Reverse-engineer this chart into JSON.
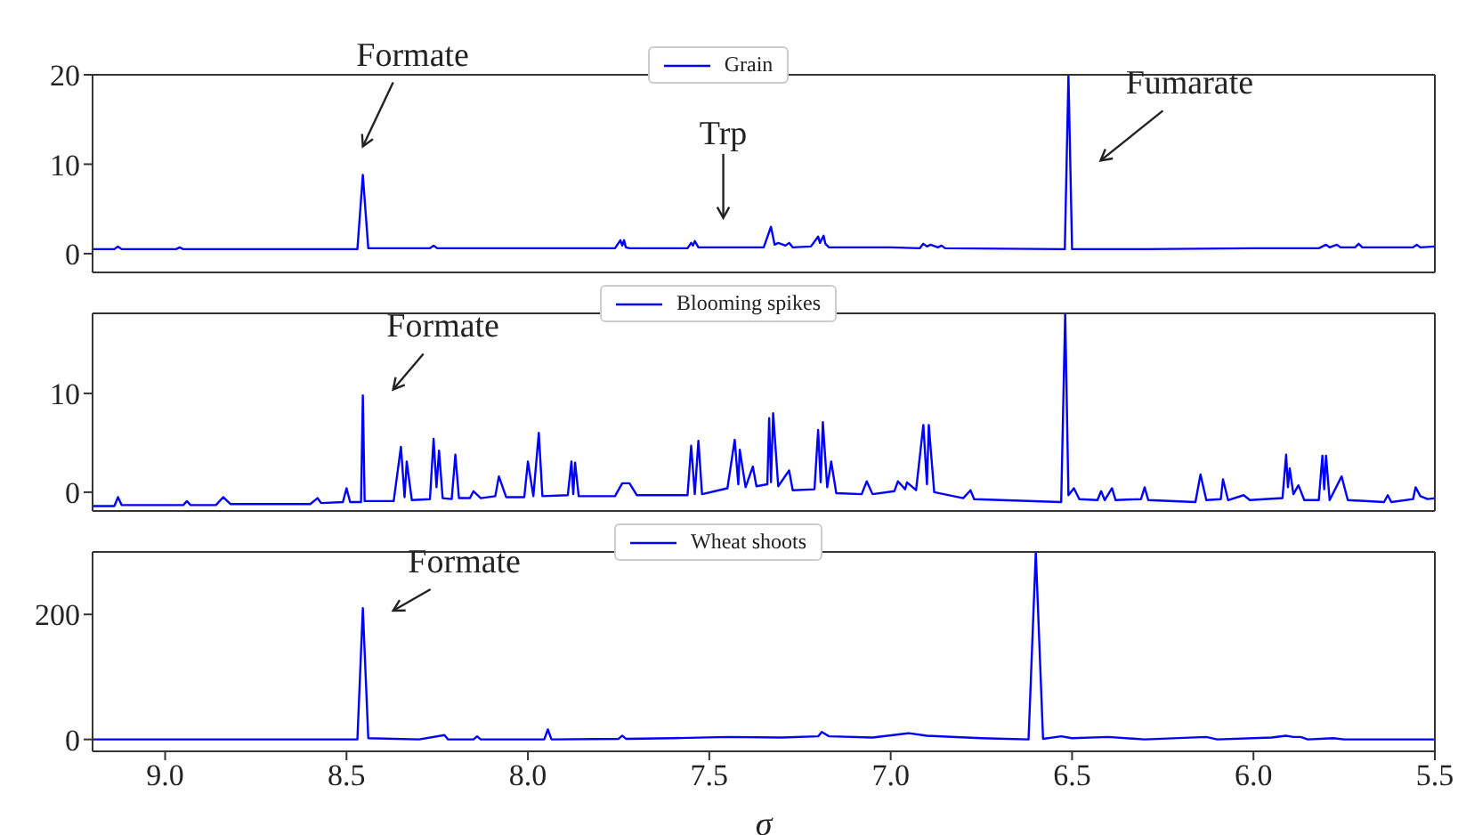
{
  "chart_data": [
    {
      "type": "line",
      "xlim": [
        9.2,
        5.5
      ],
      "ylim": [
        -2.1,
        20
      ],
      "yticks": [
        0,
        10,
        20
      ],
      "tick_labels": "y",
      "grid": false,
      "legend": "top",
      "marker": "none",
      "line_style": "solid",
      "x": [
        9.2,
        9.14,
        9.13,
        9.12,
        8.97,
        8.96,
        8.95,
        8.7,
        8.47,
        8.455,
        8.44,
        8.3,
        8.27,
        8.26,
        8.25,
        7.9,
        7.76,
        7.745,
        7.74,
        7.735,
        7.73,
        7.72,
        7.56,
        7.55,
        7.545,
        7.54,
        7.53,
        7.35,
        7.33,
        7.32,
        7.31,
        7.29,
        7.28,
        7.27,
        7.22,
        7.2,
        7.195,
        7.185,
        7.18,
        7.17,
        7.0,
        6.92,
        6.91,
        6.9,
        6.89,
        6.87,
        6.86,
        6.85,
        6.53,
        6.52,
        6.51,
        6.5,
        6.3,
        6.0,
        5.82,
        5.8,
        5.79,
        5.77,
        5.76,
        5.72,
        5.71,
        5.7,
        5.6,
        5.56,
        5.55,
        5.54,
        5.5
      ],
      "series": [
        {
          "name": "Grain",
          "color": "#0000ff",
          "values": [
            0.5,
            0.5,
            0.8,
            0.5,
            0.5,
            0.7,
            0.5,
            0.5,
            0.5,
            8.8,
            0.6,
            0.6,
            0.6,
            0.9,
            0.6,
            0.6,
            0.6,
            1.5,
            0.9,
            1.5,
            0.7,
            0.6,
            0.6,
            1.2,
            0.9,
            1.4,
            0.7,
            0.7,
            3.0,
            1.0,
            1.2,
            0.9,
            1.2,
            0.7,
            0.8,
            1.9,
            1.2,
            2.0,
            1.1,
            0.7,
            0.7,
            0.6,
            1.1,
            0.8,
            1.0,
            0.7,
            0.9,
            0.6,
            0.5,
            0.5,
            20,
            0.5,
            0.5,
            0.6,
            0.6,
            1.0,
            0.7,
            1.0,
            0.7,
            0.7,
            1.1,
            0.7,
            0.7,
            0.7,
            1.0,
            0.7,
            0.8
          ]
        }
      ],
      "annotations": [
        {
          "text": "Formate",
          "x": 8.455,
          "y": 8.8
        },
        {
          "text": "Trp",
          "x": 7.54,
          "y": 1.4
        },
        {
          "text": "Fumarate",
          "x": 6.5,
          "y": 10.4
        }
      ]
    },
    {
      "type": "line",
      "xlim": [
        9.2,
        5.5
      ],
      "ylim": [
        -1.9,
        18.1
      ],
      "yticks": [
        0,
        10
      ],
      "tick_labels": "y",
      "grid": false,
      "legend": "top",
      "marker": "none",
      "line_style": "solid",
      "x": [
        9.2,
        9.14,
        9.13,
        9.12,
        8.95,
        8.94,
        8.93,
        8.86,
        8.84,
        8.82,
        8.6,
        8.58,
        8.57,
        8.51,
        8.5,
        8.49,
        8.46,
        8.455,
        8.45,
        8.37,
        8.35,
        8.34,
        8.334,
        8.32,
        8.27,
        8.26,
        8.252,
        8.245,
        8.235,
        8.21,
        8.2,
        8.19,
        8.16,
        8.15,
        8.13,
        8.09,
        8.08,
        8.06,
        8.01,
        8.0,
        7.985,
        7.97,
        7.96,
        7.89,
        7.88,
        7.875,
        7.87,
        7.86,
        7.76,
        7.74,
        7.72,
        7.7,
        7.56,
        7.55,
        7.54,
        7.53,
        7.52,
        7.45,
        7.43,
        7.42,
        7.416,
        7.4,
        7.38,
        7.37,
        7.34,
        7.335,
        7.33,
        7.324,
        7.31,
        7.28,
        7.27,
        7.21,
        7.2,
        7.193,
        7.187,
        7.175,
        7.164,
        7.15,
        7.08,
        7.066,
        7.05,
        6.99,
        6.98,
        6.96,
        6.955,
        6.93,
        6.91,
        6.9,
        6.895,
        6.88,
        6.8,
        6.78,
        6.77,
        6.53,
        6.519,
        6.51,
        6.495,
        6.48,
        6.43,
        6.42,
        6.41,
        6.39,
        6.38,
        6.31,
        6.3,
        6.29,
        6.16,
        6.146,
        6.13,
        6.09,
        6.084,
        6.07,
        6.027,
        6.01,
        5.92,
        5.91,
        5.905,
        5.9,
        5.89,
        5.876,
        5.86,
        5.82,
        5.81,
        5.805,
        5.8,
        5.79,
        5.757,
        5.74,
        5.64,
        5.63,
        5.62,
        5.56,
        5.553,
        5.54,
        5.52,
        5.5
      ],
      "series": [
        {
          "name": "Blooming spikes",
          "color": "#0000ff",
          "values": [
            -1.4,
            -1.4,
            -0.5,
            -1.3,
            -1.3,
            -0.9,
            -1.3,
            -1.3,
            -0.5,
            -1.2,
            -1.2,
            -0.6,
            -1.1,
            -1.0,
            0.4,
            -1.0,
            -1.0,
            9.8,
            -0.9,
            -0.9,
            4.6,
            -0.5,
            3.1,
            -0.8,
            -0.7,
            5.4,
            0.5,
            4.2,
            -0.6,
            -0.7,
            3.8,
            -0.6,
            -0.6,
            0.1,
            -0.6,
            -0.4,
            1.6,
            -0.5,
            -0.5,
            3.1,
            -0.4,
            6.0,
            -0.4,
            -0.3,
            3.1,
            -0.2,
            3.0,
            -0.4,
            -0.4,
            0.9,
            0.9,
            -0.3,
            -0.3,
            4.7,
            -0.2,
            5.2,
            -0.2,
            0.4,
            5.3,
            0.8,
            4.3,
            0.5,
            2.6,
            0.6,
            0.8,
            7.5,
            1.0,
            8.0,
            0.6,
            2.2,
            0.2,
            0.3,
            6.3,
            1.0,
            7.1,
            0.5,
            3.1,
            -0.1,
            -0.2,
            1.1,
            -0.2,
            0.1,
            1.1,
            0.3,
            1.0,
            0.2,
            6.8,
            0.8,
            6.8,
            0.0,
            -0.6,
            0.2,
            -0.7,
            -1.0,
            18.1,
            -0.3,
            0.4,
            -0.7,
            -0.8,
            0.1,
            -0.8,
            0.4,
            -0.8,
            -0.7,
            0.5,
            -0.8,
            -1.0,
            1.8,
            -0.8,
            -0.7,
            1.3,
            -0.8,
            -0.3,
            -0.8,
            -0.6,
            3.8,
            0.5,
            2.4,
            -0.2,
            0.7,
            -0.8,
            -0.8,
            3.7,
            0.3,
            3.7,
            -0.8,
            1.6,
            -0.8,
            -1.0,
            -0.3,
            -1.0,
            -0.7,
            0.5,
            -0.4,
            -0.7,
            -0.6
          ]
        }
      ],
      "annotations": [
        {
          "text": "Formate",
          "x": 8.45,
          "y": 10.4
        }
      ]
    },
    {
      "type": "line",
      "xlim": [
        9.2,
        5.5
      ],
      "xticks": [
        {
          "value": 9,
          "label": "9.0"
        },
        8.5,
        {
          "value": 8,
          "label": "8.0"
        },
        7.5,
        {
          "value": 7,
          "label": "7.0"
        },
        6.5,
        {
          "value": 6,
          "label": "6.0"
        },
        5.5
      ],
      "ylim": [
        -19,
        300
      ],
      "yticks": [
        0,
        200
      ],
      "xlabel": "σ",
      "grid": false,
      "legend": "top",
      "marker": "none",
      "line_style": "solid",
      "x": [
        9.2,
        8.47,
        8.455,
        8.44,
        8.3,
        8.23,
        8.22,
        8.15,
        8.14,
        8.13,
        7.955,
        7.945,
        7.935,
        7.75,
        7.74,
        7.73,
        7.6,
        7.45,
        7.3,
        7.2,
        7.19,
        7.17,
        7.05,
        6.95,
        6.9,
        6.75,
        6.62,
        6.6,
        6.58,
        6.53,
        6.5,
        6.4,
        6.3,
        6.13,
        6.1,
        5.95,
        5.91,
        5.89,
        5.87,
        5.85,
        5.78,
        5.75,
        5.5
      ],
      "series": [
        {
          "name": "Wheat shoots",
          "color": "#0000ff",
          "values": [
            0,
            0,
            210,
            2,
            0,
            7,
            0,
            0,
            5,
            0,
            0,
            16,
            0,
            1,
            6,
            1,
            2,
            4,
            3,
            5,
            12,
            5,
            3,
            10,
            6,
            2,
            0,
            300,
            1,
            5,
            2,
            4,
            0,
            4,
            0,
            3,
            6,
            4,
            4,
            0,
            2,
            0,
            0
          ]
        }
      ],
      "annotations": [
        {
          "text": "Formate",
          "x": 8.45,
          "y": 206
        }
      ]
    }
  ]
}
